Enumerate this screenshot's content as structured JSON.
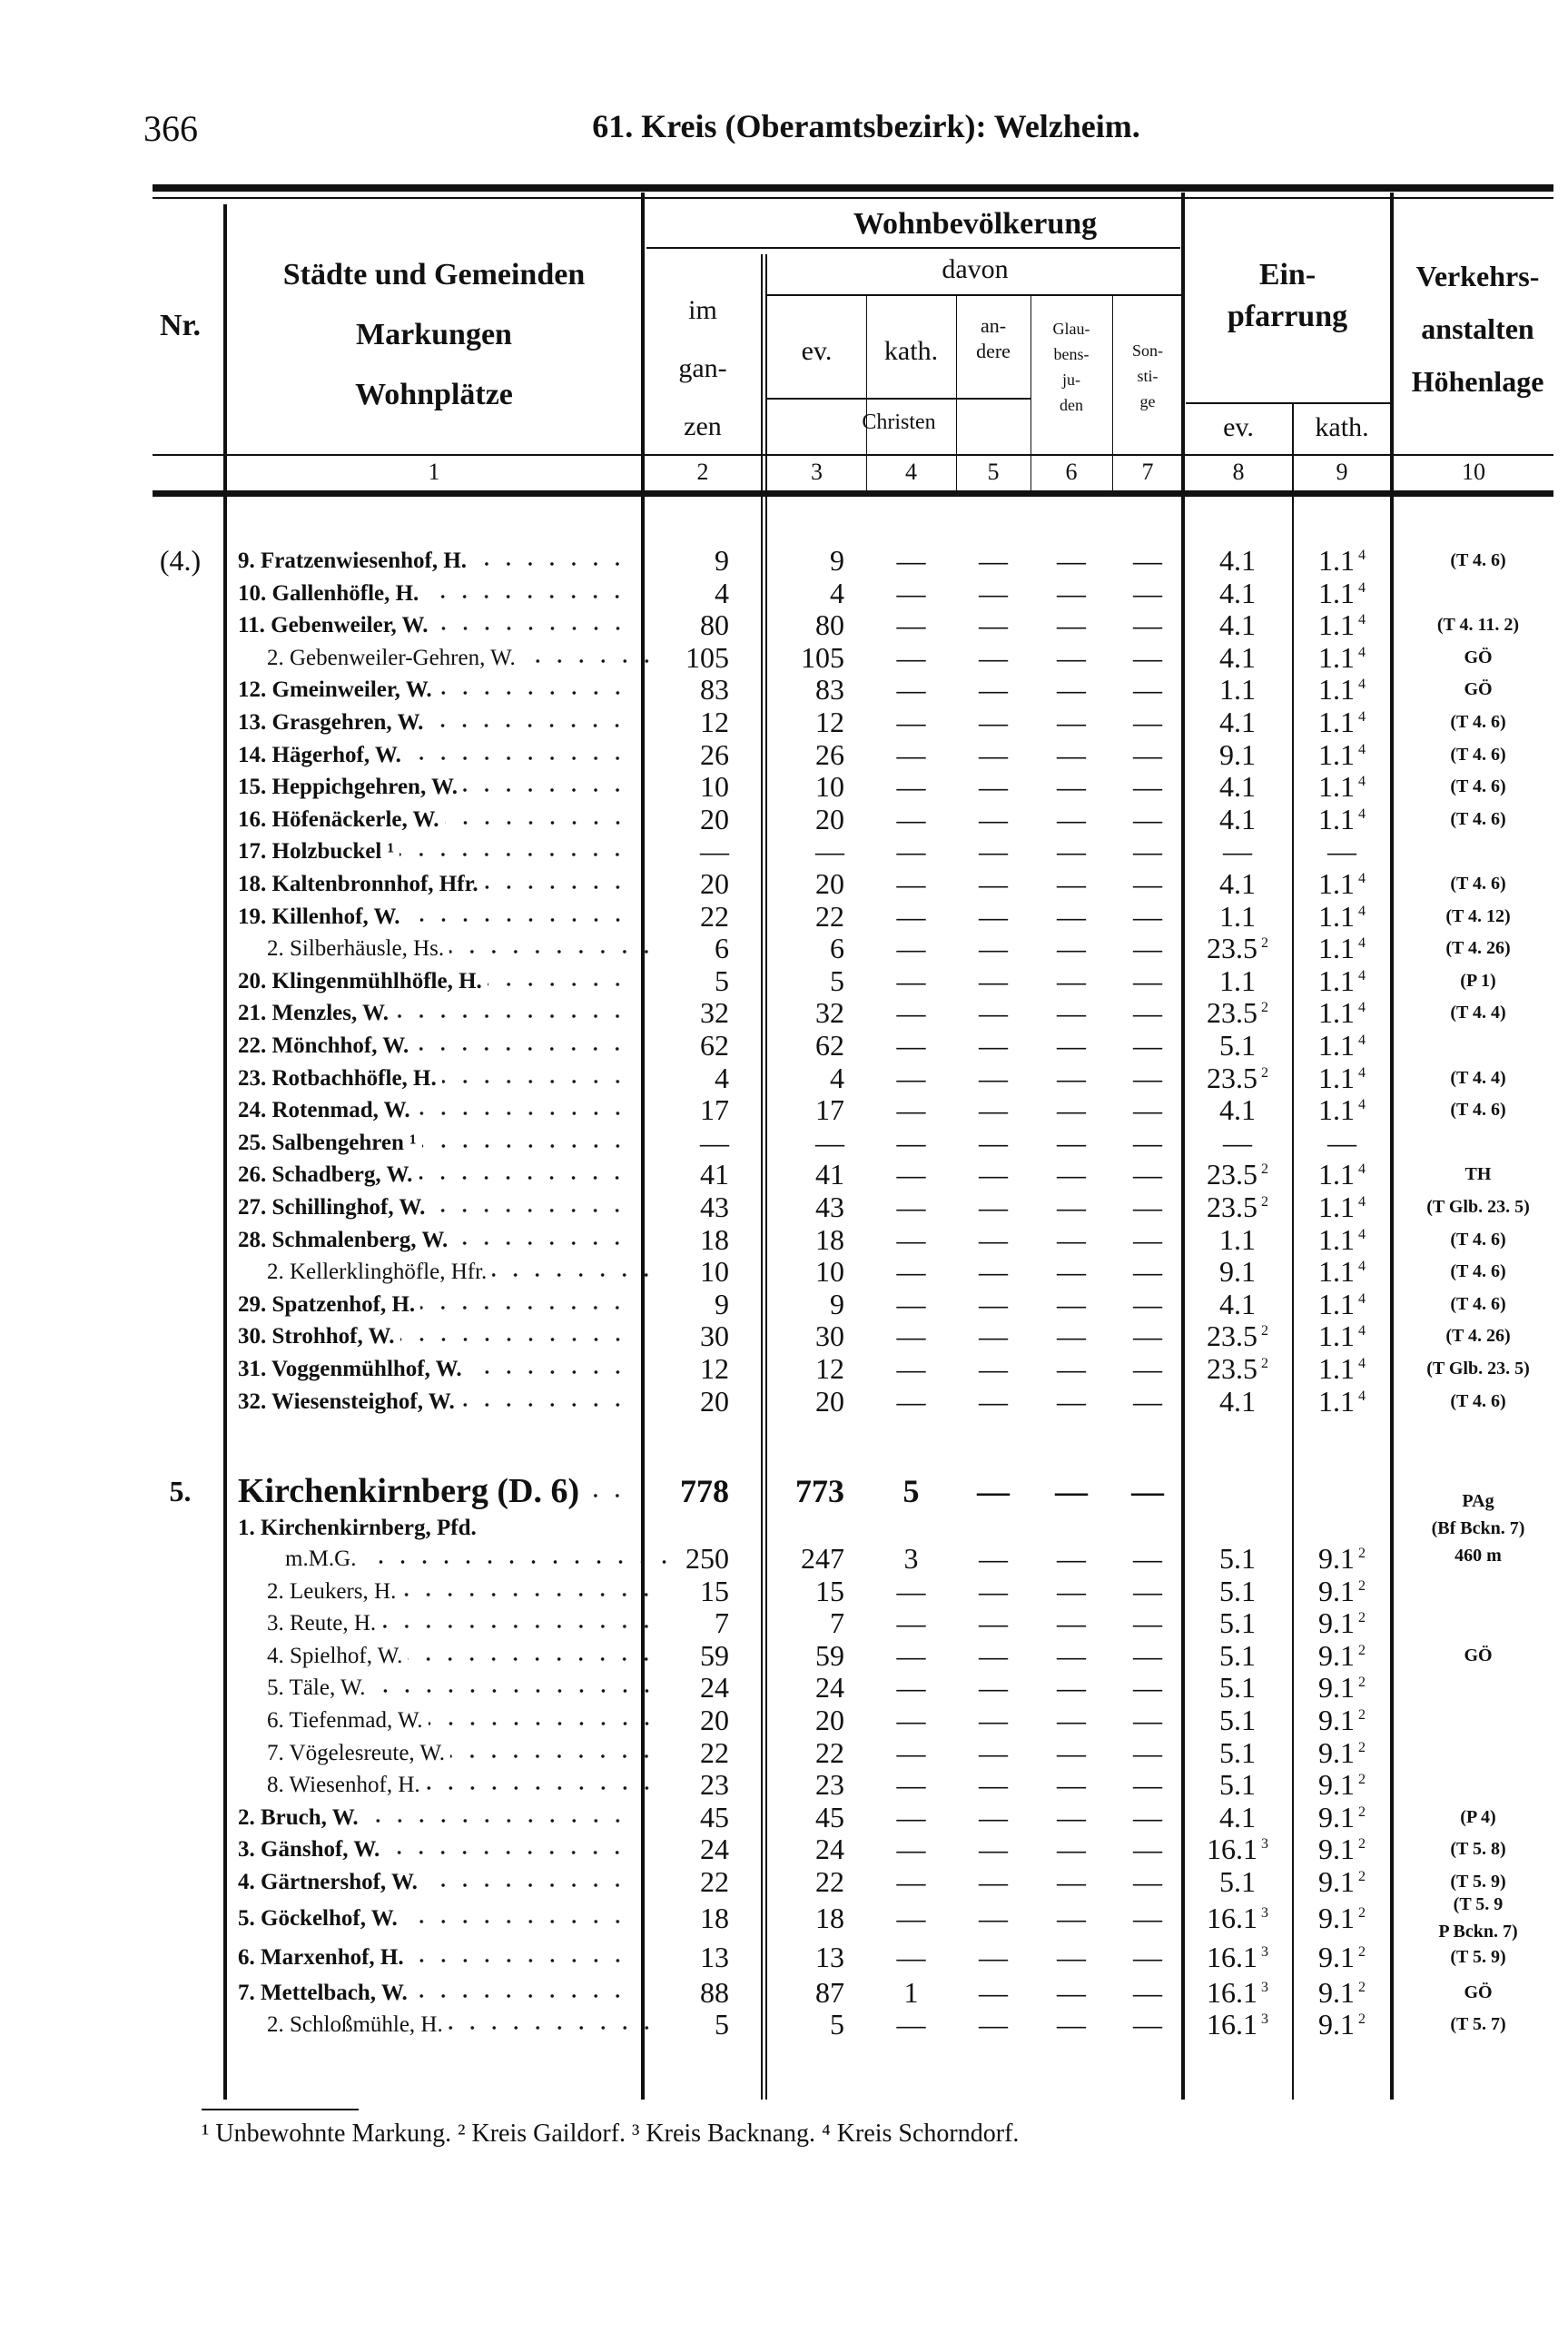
{
  "page": {
    "number": "366",
    "title": "61. Kreis (Oberamtsbezirk): Welzheim."
  },
  "header": {
    "nr": "Nr.",
    "places": [
      "Städte und Gemeinden",
      "Markungen",
      "Wohnplätze"
    ],
    "population": "Wohnbevölkerung",
    "total": [
      "im",
      "gan-",
      "zen"
    ],
    "davon": "davon",
    "ev": "ev.",
    "kath": "kath.",
    "andere": [
      "an-",
      "dere"
    ],
    "christen": "Christen",
    "juden": [
      "Glau-",
      "bens-",
      "ju-",
      "den"
    ],
    "sonstige": [
      "Son-",
      "sti-",
      "ge"
    ],
    "einpfarrung": [
      "Ein-",
      "pfarrung"
    ],
    "ein_ev": "ev.",
    "ein_kath": "kath.",
    "verkehr": [
      "Verkehrs-",
      "anstalten",
      "Höhenlage"
    ],
    "column_numbers": [
      "1",
      "2",
      "3",
      "4",
      "5",
      "6",
      "7",
      "8",
      "9",
      "10"
    ]
  },
  "block1": {
    "nr": "(4.)",
    "rows": [
      {
        "name": "9. Fratzenwiesenhof, H.",
        "bold": true,
        "c2": "9",
        "c3": "9",
        "c4": "—",
        "c5": "—",
        "c6": "—",
        "c7": "—",
        "c8": "4.1",
        "c8s": "",
        "c9": "1.1",
        "c9s": "4",
        "c10": "(T 4. 6)"
      },
      {
        "name": "10. Gallenhöfle, H.",
        "bold": true,
        "c2": "4",
        "c3": "4",
        "c4": "—",
        "c5": "—",
        "c6": "—",
        "c7": "—",
        "c8": "4.1",
        "c8s": "",
        "c9": "1.1",
        "c9s": "4",
        "c10": ""
      },
      {
        "name": "11. Gebenweiler, W.",
        "bold": true,
        "c2": "80",
        "c3": "80",
        "c4": "—",
        "c5": "—",
        "c6": "—",
        "c7": "—",
        "c8": "4.1",
        "c8s": "",
        "c9": "1.1",
        "c9s": "4",
        "c10": "(T 4. 11. 2)"
      },
      {
        "name": "2. Gebenweiler-Gehren, W.",
        "bold": false,
        "indent": true,
        "c2": "105",
        "c3": "105",
        "c4": "—",
        "c5": "—",
        "c6": "—",
        "c7": "—",
        "c8": "4.1",
        "c8s": "",
        "c9": "1.1",
        "c9s": "4",
        "c10": "GÖ"
      },
      {
        "name": "12. Gmeinweiler, W.",
        "bold": true,
        "c2": "83",
        "c3": "83",
        "c4": "—",
        "c5": "—",
        "c6": "—",
        "c7": "—",
        "c8": "1.1",
        "c8s": "",
        "c9": "1.1",
        "c9s": "4",
        "c10": "GÖ"
      },
      {
        "name": "13. Grasgehren, W.",
        "bold": true,
        "c2": "12",
        "c3": "12",
        "c4": "—",
        "c5": "—",
        "c6": "—",
        "c7": "—",
        "c8": "4.1",
        "c8s": "",
        "c9": "1.1",
        "c9s": "4",
        "c10": "(T 4. 6)"
      },
      {
        "name": "14. Hägerhof, W.",
        "bold": true,
        "c2": "26",
        "c3": "26",
        "c4": "—",
        "c5": "—",
        "c6": "—",
        "c7": "—",
        "c8": "9.1",
        "c8s": "",
        "c9": "1.1",
        "c9s": "4",
        "c10": "(T 4. 6)"
      },
      {
        "name": "15. Heppichgehren, W.",
        "bold": true,
        "c2": "10",
        "c3": "10",
        "c4": "—",
        "c5": "—",
        "c6": "—",
        "c7": "—",
        "c8": "4.1",
        "c8s": "",
        "c9": "1.1",
        "c9s": "4",
        "c10": "(T 4. 6)"
      },
      {
        "name": "16. Höfenäckerle, W.",
        "bold": true,
        "c2": "20",
        "c3": "20",
        "c4": "—",
        "c5": "—",
        "c6": "—",
        "c7": "—",
        "c8": "4.1",
        "c8s": "",
        "c9": "1.1",
        "c9s": "4",
        "c10": "(T 4. 6)"
      },
      {
        "name": "17. Holzbuckel ¹",
        "bold": true,
        "c2": "—",
        "c3": "—",
        "c4": "—",
        "c5": "—",
        "c6": "—",
        "c7": "—",
        "c8": "—",
        "c8s": "",
        "c9": "—",
        "c9s": "",
        "c10": ""
      },
      {
        "name": "18. Kaltenbronnhof, Hfr.",
        "bold": true,
        "c2": "20",
        "c3": "20",
        "c4": "—",
        "c5": "—",
        "c6": "—",
        "c7": "—",
        "c8": "4.1",
        "c8s": "",
        "c9": "1.1",
        "c9s": "4",
        "c10": "(T 4. 6)"
      },
      {
        "name": "19. Killenhof, W.",
        "bold": true,
        "c2": "22",
        "c3": "22",
        "c4": "—",
        "c5": "—",
        "c6": "—",
        "c7": "—",
        "c8": "1.1",
        "c8s": "",
        "c9": "1.1",
        "c9s": "4",
        "c10": "(T 4. 12)"
      },
      {
        "name": "2. Silberhäusle, Hs.",
        "bold": false,
        "indent": true,
        "c2": "6",
        "c3": "6",
        "c4": "—",
        "c5": "—",
        "c6": "—",
        "c7": "—",
        "c8": "23.5",
        "c8s": "2",
        "c9": "1.1",
        "c9s": "4",
        "c10": "(T 4. 26)"
      },
      {
        "name": "20. Klingenmühlhöfle, H.",
        "bold": true,
        "c2": "5",
        "c3": "5",
        "c4": "—",
        "c5": "—",
        "c6": "—",
        "c7": "—",
        "c8": "1.1",
        "c8s": "",
        "c9": "1.1",
        "c9s": "4",
        "c10": "(P 1)"
      },
      {
        "name": "21. Menzles, W.",
        "bold": true,
        "c2": "32",
        "c3": "32",
        "c4": "—",
        "c5": "—",
        "c6": "—",
        "c7": "—",
        "c8": "23.5",
        "c8s": "2",
        "c9": "1.1",
        "c9s": "4",
        "c10": "(T 4. 4)"
      },
      {
        "name": "22. Mönchhof, W.",
        "bold": true,
        "c2": "62",
        "c3": "62",
        "c4": "—",
        "c5": "—",
        "c6": "—",
        "c7": "—",
        "c8": "5.1",
        "c8s": "",
        "c9": "1.1",
        "c9s": "4",
        "c10": ""
      },
      {
        "name": "23. Rotbachhöfle, H.",
        "bold": true,
        "c2": "4",
        "c3": "4",
        "c4": "—",
        "c5": "—",
        "c6": "—",
        "c7": "—",
        "c8": "23.5",
        "c8s": "2",
        "c9": "1.1",
        "c9s": "4",
        "c10": "(T 4. 4)"
      },
      {
        "name": "24. Rotenmad, W.",
        "bold": true,
        "c2": "17",
        "c3": "17",
        "c4": "—",
        "c5": "—",
        "c6": "—",
        "c7": "—",
        "c8": "4.1",
        "c8s": "",
        "c9": "1.1",
        "c9s": "4",
        "c10": "(T 4. 6)"
      },
      {
        "name": "25. Salbengehren ¹",
        "bold": true,
        "c2": "—",
        "c3": "—",
        "c4": "—",
        "c5": "—",
        "c6": "—",
        "c7": "—",
        "c8": "—",
        "c8s": "",
        "c9": "—",
        "c9s": "",
        "c10": ""
      },
      {
        "name": "26. Schadberg, W.",
        "bold": true,
        "c2": "41",
        "c3": "41",
        "c4": "—",
        "c5": "—",
        "c6": "—",
        "c7": "—",
        "c8": "23.5",
        "c8s": "2",
        "c9": "1.1",
        "c9s": "4",
        "c10": "TH"
      },
      {
        "name": "27. Schillinghof, W.",
        "bold": true,
        "c2": "43",
        "c3": "43",
        "c4": "—",
        "c5": "—",
        "c6": "—",
        "c7": "—",
        "c8": "23.5",
        "c8s": "2",
        "c9": "1.1",
        "c9s": "4",
        "c10": "(T Glb. 23. 5)"
      },
      {
        "name": "28. Schmalenberg, W.",
        "bold": true,
        "c2": "18",
        "c3": "18",
        "c4": "—",
        "c5": "—",
        "c6": "—",
        "c7": "—",
        "c8": "1.1",
        "c8s": "",
        "c9": "1.1",
        "c9s": "4",
        "c10": "(T 4. 6)"
      },
      {
        "name": "2. Kellerklinghöfle, Hfr.",
        "bold": false,
        "indent": true,
        "c2": "10",
        "c3": "10",
        "c4": "—",
        "c5": "—",
        "c6": "—",
        "c7": "—",
        "c8": "9.1",
        "c8s": "",
        "c9": "1.1",
        "c9s": "4",
        "c10": "(T 4. 6)"
      },
      {
        "name": "29. Spatzenhof, H.",
        "bold": true,
        "c2": "9",
        "c3": "9",
        "c4": "—",
        "c5": "—",
        "c6": "—",
        "c7": "—",
        "c8": "4.1",
        "c8s": "",
        "c9": "1.1",
        "c9s": "4",
        "c10": "(T 4. 6)"
      },
      {
        "name": "30. Strohhof, W.",
        "bold": true,
        "c2": "30",
        "c3": "30",
        "c4": "—",
        "c5": "—",
        "c6": "—",
        "c7": "—",
        "c8": "23.5",
        "c8s": "2",
        "c9": "1.1",
        "c9s": "4",
        "c10": "(T 4. 26)"
      },
      {
        "name": "31. Voggenmühlhof, W.",
        "bold": true,
        "c2": "12",
        "c3": "12",
        "c4": "—",
        "c5": "—",
        "c6": "—",
        "c7": "—",
        "c8": "23.5",
        "c8s": "2",
        "c9": "1.1",
        "c9s": "4",
        "c10": "(T Glb. 23. 5)"
      },
      {
        "name": "32. Wiesensteighof, W.",
        "bold": true,
        "c2": "20",
        "c3": "20",
        "c4": "—",
        "c5": "—",
        "c6": "—",
        "c7": "—",
        "c8": "4.1",
        "c8s": "",
        "c9": "1.1",
        "c9s": "4",
        "c10": "(T 4. 6)"
      }
    ]
  },
  "block2": {
    "nr": "5.",
    "rows": [
      {
        "name": "Kirchenkirnberg (D. 6)",
        "main": true,
        "c2": "778",
        "c3": "773",
        "c4": "5",
        "c5": "—",
        "c6": "—",
        "c7": "—",
        "c8": "",
        "c8s": "",
        "c9": "",
        "c9s": "",
        "c10": ""
      },
      {
        "name": "1. Kirchenkirnberg, Pfd.",
        "bold": true,
        "noleader": true,
        "c2": "",
        "c3": "",
        "c4": "",
        "c5": "",
        "c6": "",
        "c7": "",
        "c8": "",
        "c8s": "",
        "c9": "",
        "c9s": "",
        "c10lines": [
          "PAg",
          "(Bf Bckn. 7)",
          "460 m"
        ]
      },
      {
        "name": "m.M.G.",
        "bold": false,
        "indent2": true,
        "c2": "250",
        "c3": "247",
        "c4": "3",
        "c5": "—",
        "c6": "—",
        "c7": "—",
        "c8": "5.1",
        "c8s": "",
        "c9": "9.1",
        "c9s": "2",
        "c10": ""
      },
      {
        "name": "2. Leukers, H.",
        "bold": false,
        "indent": true,
        "c2": "15",
        "c3": "15",
        "c4": "—",
        "c5": "—",
        "c6": "—",
        "c7": "—",
        "c8": "5.1",
        "c8s": "",
        "c9": "9.1",
        "c9s": "2",
        "c10": ""
      },
      {
        "name": "3. Reute, H.",
        "bold": false,
        "indent": true,
        "c2": "7",
        "c3": "7",
        "c4": "—",
        "c5": "—",
        "c6": "—",
        "c7": "—",
        "c8": "5.1",
        "c8s": "",
        "c9": "9.1",
        "c9s": "2",
        "c10": ""
      },
      {
        "name": "4. Spielhof, W.",
        "bold": false,
        "indent": true,
        "c2": "59",
        "c3": "59",
        "c4": "—",
        "c5": "—",
        "c6": "—",
        "c7": "—",
        "c8": "5.1",
        "c8s": "",
        "c9": "9.1",
        "c9s": "2",
        "c10": "GÖ"
      },
      {
        "name": "5. Täle, W.",
        "bold": false,
        "indent": true,
        "c2": "24",
        "c3": "24",
        "c4": "—",
        "c5": "—",
        "c6": "—",
        "c7": "—",
        "c8": "5.1",
        "c8s": "",
        "c9": "9.1",
        "c9s": "2",
        "c10": ""
      },
      {
        "name": "6. Tiefenmad, W.",
        "bold": false,
        "indent": true,
        "c2": "20",
        "c3": "20",
        "c4": "—",
        "c5": "—",
        "c6": "—",
        "c7": "—",
        "c8": "5.1",
        "c8s": "",
        "c9": "9.1",
        "c9s": "2",
        "c10": ""
      },
      {
        "name": "7. Vögelesreute, W.",
        "bold": false,
        "indent": true,
        "c2": "22",
        "c3": "22",
        "c4": "—",
        "c5": "—",
        "c6": "—",
        "c7": "—",
        "c8": "5.1",
        "c8s": "",
        "c9": "9.1",
        "c9s": "2",
        "c10": ""
      },
      {
        "name": "8. Wiesenhof, H.",
        "bold": false,
        "indent": true,
        "c2": "23",
        "c3": "23",
        "c4": "—",
        "c5": "—",
        "c6": "—",
        "c7": "—",
        "c8": "5.1",
        "c8s": "",
        "c9": "9.1",
        "c9s": "2",
        "c10": ""
      },
      {
        "name": "2. Bruch, W.",
        "bold": true,
        "c2": "45",
        "c3": "45",
        "c4": "—",
        "c5": "—",
        "c6": "—",
        "c7": "—",
        "c8": "4.1",
        "c8s": "",
        "c9": "9.1",
        "c9s": "2",
        "c10": "(P 4)"
      },
      {
        "name": "3. Gänshof, W.",
        "bold": true,
        "c2": "24",
        "c3": "24",
        "c4": "—",
        "c5": "—",
        "c6": "—",
        "c7": "—",
        "c8": "16.1",
        "c8s": "3",
        "c9": "9.1",
        "c9s": "2",
        "c10": "(T 5. 8)"
      },
      {
        "name": "4. Gärtnershof, W.",
        "bold": true,
        "c2": "22",
        "c3": "22",
        "c4": "—",
        "c5": "—",
        "c6": "—",
        "c7": "—",
        "c8": "5.1",
        "c8s": "",
        "c9": "9.1",
        "c9s": "2",
        "c10": "(T 5. 9)"
      },
      {
        "name": "5. Göckelhof, W.",
        "bold": true,
        "tall": true,
        "c2": "18",
        "c3": "18",
        "c4": "—",
        "c5": "—",
        "c6": "—",
        "c7": "—",
        "c8": "16.1",
        "c8s": "3",
        "c9": "9.1",
        "c9s": "2",
        "c10lines": [
          "(T 5. 9",
          "P Bckn. 7)"
        ]
      },
      {
        "name": "6. Marxenhof, H.",
        "bold": true,
        "tall": true,
        "c2": "13",
        "c3": "13",
        "c4": "—",
        "c5": "—",
        "c6": "—",
        "c7": "—",
        "c8": "16.1",
        "c8s": "3",
        "c9": "9.1",
        "c9s": "2",
        "c10": "(T 5. 9)"
      },
      {
        "name": "7. Mettelbach, W.",
        "bold": true,
        "c2": "88",
        "c3": "87",
        "c4": "1",
        "c5": "—",
        "c6": "—",
        "c7": "—",
        "c8": "16.1",
        "c8s": "3",
        "c9": "9.1",
        "c9s": "2",
        "c10": "GÖ"
      },
      {
        "name": "2. Schloßmühle, H.",
        "bold": false,
        "indent": true,
        "c2": "5",
        "c3": "5",
        "c4": "—",
        "c5": "—",
        "c6": "—",
        "c7": "—",
        "c8": "16.1",
        "c8s": "3",
        "c9": "9.1",
        "c9s": "2",
        "c10": "(T 5. 7)"
      }
    ]
  },
  "footnotes": "¹ Unbewohnte Markung.  ² Kreis Gaildorf.  ³ Kreis Backnang.  ⁴ Kreis Schorndorf."
}
